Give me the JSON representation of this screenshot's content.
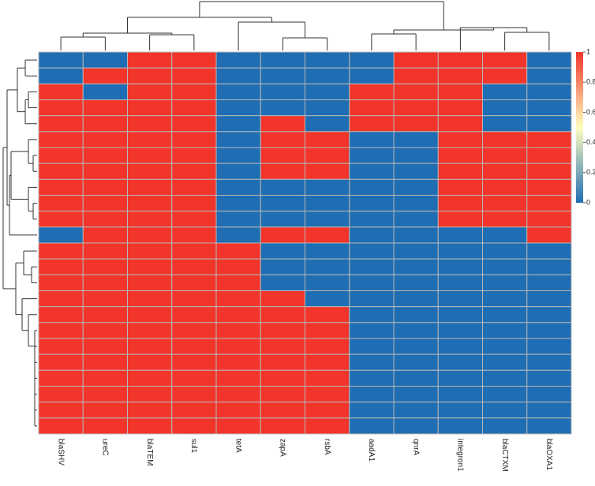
{
  "chart_data": {
    "type": "heatmap",
    "title": "",
    "xlabel": "",
    "ylabel": "",
    "columns": [
      "blaSHV",
      "ureC",
      "blaTEM",
      "sul1",
      "tetA",
      "zapA",
      "rsbA",
      "aadA1",
      "qnrA",
      "integron1",
      "blaCTXM",
      "blaOXA1"
    ],
    "values": [
      [
        0,
        0,
        1,
        1,
        0,
        0,
        0,
        0,
        1,
        1,
        1,
        0
      ],
      [
        0,
        1,
        1,
        1,
        0,
        0,
        0,
        0,
        1,
        1,
        1,
        0
      ],
      [
        1,
        0,
        1,
        1,
        0,
        0,
        0,
        1,
        1,
        1,
        0,
        0
      ],
      [
        1,
        1,
        1,
        1,
        0,
        0,
        0,
        1,
        1,
        1,
        0,
        0
      ],
      [
        1,
        1,
        1,
        1,
        0,
        1,
        0,
        1,
        1,
        1,
        0,
        0
      ],
      [
        1,
        1,
        1,
        1,
        0,
        1,
        1,
        0,
        0,
        1,
        1,
        1
      ],
      [
        1,
        1,
        1,
        1,
        0,
        1,
        1,
        0,
        0,
        1,
        1,
        1
      ],
      [
        1,
        1,
        1,
        1,
        0,
        1,
        1,
        0,
        0,
        1,
        1,
        1
      ],
      [
        1,
        1,
        1,
        1,
        0,
        0,
        0,
        0,
        0,
        1,
        1,
        1
      ],
      [
        1,
        1,
        1,
        1,
        0,
        0,
        0,
        0,
        0,
        1,
        1,
        1
      ],
      [
        1,
        1,
        1,
        1,
        0,
        0,
        0,
        0,
        0,
        1,
        1,
        1
      ],
      [
        0,
        1,
        1,
        1,
        0,
        1,
        1,
        0,
        0,
        0,
        0,
        1
      ],
      [
        1,
        1,
        1,
        1,
        1,
        0,
        0,
        0,
        0,
        0,
        0,
        0
      ],
      [
        1,
        1,
        1,
        1,
        1,
        0,
        0,
        0,
        0,
        0,
        0,
        0
      ],
      [
        1,
        1,
        1,
        1,
        1,
        0,
        0,
        0,
        0,
        0,
        0,
        0
      ],
      [
        1,
        1,
        1,
        1,
        1,
        1,
        0,
        0,
        0,
        0,
        0,
        0
      ],
      [
        1,
        1,
        1,
        1,
        1,
        1,
        1,
        0,
        0,
        0,
        0,
        0
      ],
      [
        1,
        1,
        1,
        1,
        1,
        1,
        1,
        0,
        0,
        0,
        0,
        0
      ],
      [
        1,
        1,
        1,
        1,
        1,
        1,
        1,
        0,
        0,
        0,
        0,
        0
      ],
      [
        1,
        1,
        1,
        1,
        1,
        1,
        1,
        0,
        0,
        0,
        0,
        0
      ],
      [
        1,
        1,
        1,
        1,
        1,
        1,
        1,
        0,
        0,
        0,
        0,
        0
      ],
      [
        1,
        1,
        1,
        1,
        1,
        1,
        1,
        0,
        0,
        0,
        0,
        0
      ],
      [
        1,
        1,
        1,
        1,
        1,
        1,
        1,
        0,
        0,
        0,
        0,
        0
      ],
      [
        1,
        1,
        1,
        1,
        1,
        1,
        1,
        0,
        0,
        0,
        0,
        0
      ]
    ],
    "color_scale": {
      "min": 0,
      "max": 1,
      "ticks": [
        "0",
        "0.2",
        "0.4",
        "0.6",
        "0.8",
        "1"
      ],
      "low_color": "#1f6db3",
      "mid_color": "#ffffbf",
      "high_color": "#f2352b"
    },
    "cell_colors": {
      "0": "#1f6db3",
      "1": "#f2352b"
    },
    "grid_color": "#b8b8b8",
    "legend_position": "right",
    "column_dendrogram": true,
    "row_dendrogram": true
  }
}
